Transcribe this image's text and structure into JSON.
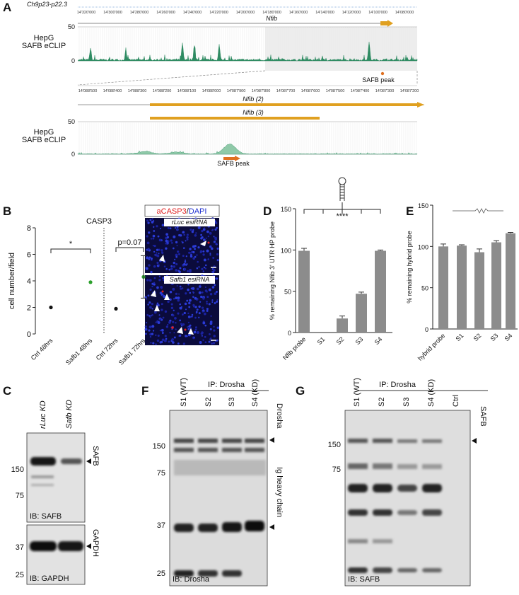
{
  "panel_labels": [
    "A",
    "B",
    "C",
    "D",
    "E",
    "F",
    "G"
  ],
  "genome": {
    "locus": "Ch9p23-p22.3",
    "coords_top": [
      "14'320'000",
      "14'300'000",
      "14'280'000",
      "14'260'000",
      "14'240'000",
      "14'220'000",
      "14'200'000",
      "14'180'000",
      "14'160'000",
      "14'140'000",
      "14'120'000",
      "14'100'000",
      "14'080'000"
    ],
    "gene": "Nfib",
    "coords_zoom": [
      "14'088'500",
      "14'088'400",
      "14'088'300",
      "14'088'200",
      "14'088'100",
      "14'088'000",
      "14'087'900",
      "14'087'800",
      "14'087'700",
      "14'087'600",
      "14'087'500",
      "14'087'400",
      "14'087'300",
      "14'087'200"
    ],
    "isoforms": [
      "Nfib (2)",
      "Nfib (3)"
    ],
    "tracks": [
      {
        "label": [
          "HepG",
          "SAFB eCLIP"
        ],
        "ylim": [
          0,
          50
        ],
        "yticks": [
          0,
          50
        ],
        "peak_label": "SAFB peak"
      },
      {
        "label": [
          "HepG",
          "SAFB eCLIP"
        ],
        "ylim": [
          0,
          50
        ],
        "yticks": [
          0,
          50
        ],
        "peak_label": "SAFB peak"
      }
    ]
  },
  "chart_data": [
    {
      "type": "dot",
      "title": "CASP3",
      "y_label": "cell number/field",
      "categories": [
        "Ctrl 48hrs",
        "Safb1 48hrs",
        "Ctrl 72hrs",
        "Safb1 72hrs"
      ],
      "values": [
        2.0,
        3.9,
        1.9,
        4.3
      ],
      "errors": [
        null,
        null,
        null,
        1.6
      ],
      "colors": [
        "#111111",
        "#2ca02c",
        "#111111",
        "#2ca02c"
      ],
      "ylim": [
        0,
        8
      ],
      "yticks": [
        0,
        2,
        4,
        6,
        8
      ],
      "annotations": [
        "*",
        "p=0.07"
      ]
    },
    {
      "type": "bar",
      "y_label": "% remaining Nfib 3' UTR HP probe",
      "categories": [
        "Nfib probe",
        "S1",
        "S2",
        "S3",
        "S4"
      ],
      "values": [
        99,
        0,
        17,
        47,
        99
      ],
      "errors": [
        3,
        null,
        3,
        2,
        1
      ],
      "color": "#8c8c8c",
      "ylim": [
        0,
        150
      ],
      "yticks": [
        0,
        50,
        100,
        150
      ],
      "annotations": [
        "****"
      ]
    },
    {
      "type": "bar",
      "y_label": "% remaining hybrid probe",
      "categories": [
        "hybrid probe",
        "S1",
        "S2",
        "S3",
        "S4"
      ],
      "values": [
        100,
        101,
        93,
        105,
        116
      ],
      "errors": [
        3,
        1,
        4,
        2,
        1
      ],
      "color": "#8c8c8c",
      "ylim": [
        0,
        150
      ],
      "yticks": [
        0,
        50,
        100,
        150
      ]
    }
  ],
  "micrographs": {
    "legend": [
      "aCASP3",
      "/",
      "DAPI"
    ],
    "images": [
      "rLuc esiRNA",
      "Safb1 esiRNA"
    ]
  },
  "blots": {
    "C": {
      "lanes": [
        "rLuc KD",
        "Safb KD"
      ],
      "panels": [
        {
          "target": "SAFB",
          "ib": "IB: SAFB",
          "mw": [
            150,
            75
          ]
        },
        {
          "target": "GAPDH",
          "ib": "IB: GAPDH",
          "mw": [
            37,
            25
          ]
        }
      ]
    },
    "F": {
      "header": "IP: Drosha",
      "lanes": [
        "S1 (WT)",
        "S2",
        "S3",
        "S4 (KD)"
      ],
      "mw": [
        150,
        75,
        37,
        25
      ],
      "targets": [
        "Drosha",
        "Ig heavy chain"
      ],
      "ib": "IB: Drosha"
    },
    "G": {
      "header": "IP: Drosha",
      "lanes": [
        "S1 (WT)",
        "S2",
        "S3",
        "S4 (KD)",
        "Ctrl"
      ],
      "mw": [
        150,
        75
      ],
      "targets": [
        "SAFB"
      ],
      "ib": "IB: SAFB"
    }
  }
}
